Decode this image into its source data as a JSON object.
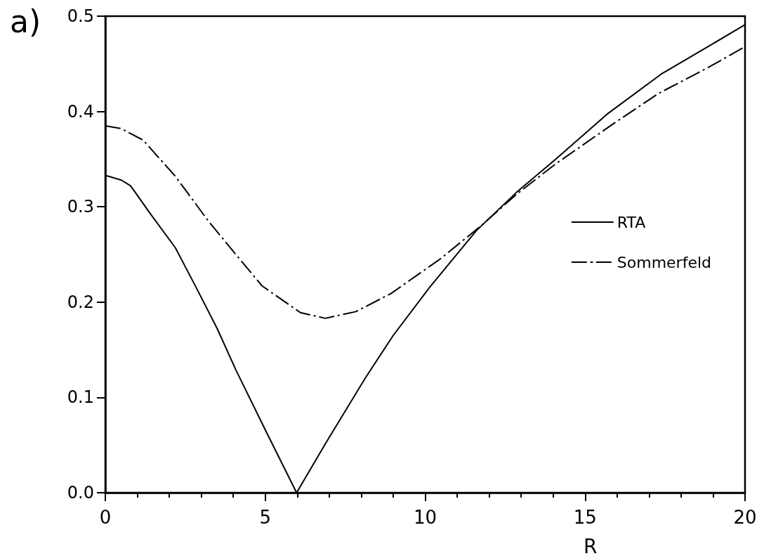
{
  "chart_data": {
    "type": "line",
    "xlabel": "R",
    "annotations": [
      "a)"
    ],
    "xlim": [
      0,
      20
    ],
    "xticks": [
      0,
      5,
      10,
      15,
      20
    ],
    "ylim": [
      0,
      0.5
    ],
    "yticks": [
      {
        "value": 0,
        "label": "0.0"
      },
      0.1,
      0.2,
      0.3,
      0.4,
      0.5
    ],
    "grid": false,
    "legend": "right",
    "marker": "none",
    "series": [
      {
        "name": "RTA",
        "color": "#000000",
        "line_style": "solid",
        "x": [
          0,
          0.5,
          0.79,
          1.4,
          2.19,
          2.83,
          3.5,
          4.08,
          5,
          5.98,
          6.89,
          8.14,
          9.0,
          10.15,
          11.6,
          12.85,
          14.08,
          15.68,
          17.37,
          18.84,
          20
        ],
        "values": [
          0.333,
          0.328,
          0.322,
          0.293,
          0.257,
          0.216,
          0.172,
          0.129,
          0.066,
          0.0,
          0.052,
          0.121,
          0.165,
          0.216,
          0.275,
          0.315,
          0.35,
          0.397,
          0.439,
          0.468,
          0.491
        ]
      },
      {
        "name": "Sommerfeld",
        "color": "#000000",
        "line_style": "dashdot",
        "x": [
          0,
          0.5,
          1.18,
          2.19,
          3.2,
          4.08,
          4.9,
          6.1,
          6.88,
          7.83,
          8.93,
          10.46,
          11.78,
          12.85,
          14.08,
          15.92,
          17.3,
          18.84,
          20
        ],
        "values": [
          0.385,
          0.382,
          0.37,
          0.332,
          0.286,
          0.25,
          0.217,
          0.189,
          0.183,
          0.19,
          0.209,
          0.245,
          0.281,
          0.313,
          0.345,
          0.388,
          0.419,
          0.446,
          0.468
        ]
      }
    ]
  }
}
